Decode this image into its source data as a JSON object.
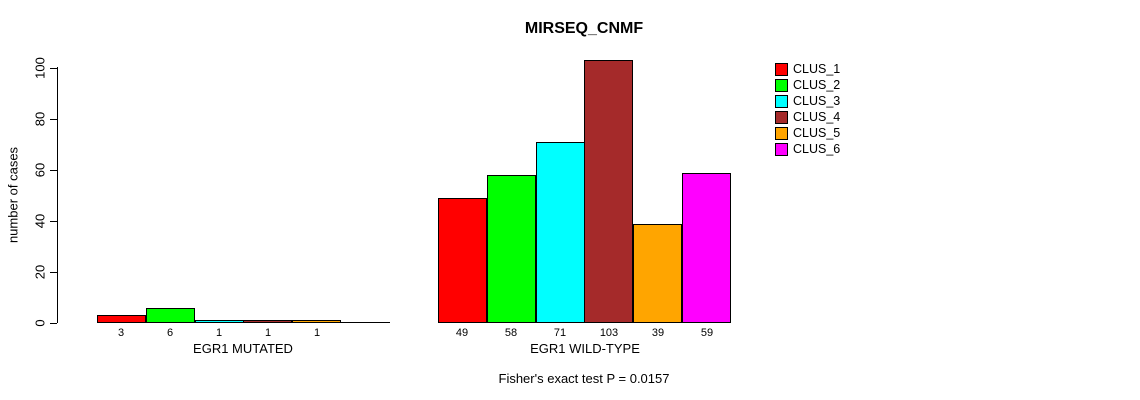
{
  "chart_data": {
    "type": "bar",
    "title": "MIRSEQ_CNMF",
    "ylabel": "number of cases",
    "ylim": [
      0,
      100
    ],
    "yticks": [
      0,
      20,
      40,
      60,
      80,
      100
    ],
    "grid": false,
    "legend_position": "right",
    "legend": [
      {
        "label": "CLUS_1",
        "color": "#ff0000"
      },
      {
        "label": "CLUS_2",
        "color": "#00ff00"
      },
      {
        "label": "CLUS_3",
        "color": "#00ffff"
      },
      {
        "label": "CLUS_4",
        "color": "#a52a2a"
      },
      {
        "label": "CLUS_5",
        "color": "#ffa500"
      },
      {
        "label": "CLUS_6",
        "color": "#ff00ff"
      }
    ],
    "groups": [
      {
        "label": "EGR1 MUTATED",
        "values": [
          3,
          6,
          1,
          1,
          1,
          0
        ],
        "bar_labels": [
          "3",
          "6",
          "1",
          "1",
          "1",
          ""
        ]
      },
      {
        "label": "EGR1 WILD-TYPE",
        "values": [
          49,
          58,
          71,
          103,
          39,
          59
        ],
        "bar_labels": [
          "49",
          "58",
          "71",
          "103",
          "39",
          "59"
        ]
      }
    ],
    "annotation": "Fisher's exact test P = 0.0157"
  }
}
